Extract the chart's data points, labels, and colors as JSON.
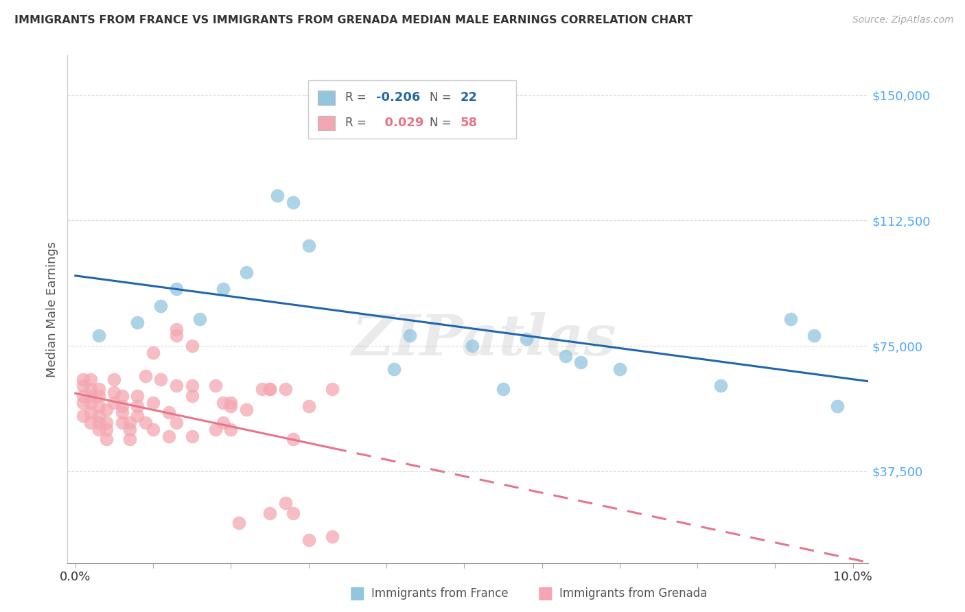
{
  "title": "IMMIGRANTS FROM FRANCE VS IMMIGRANTS FROM GRENADA MEDIAN MALE EARNINGS CORRELATION CHART",
  "source": "Source: ZipAtlas.com",
  "ylabel": "Median Male Earnings",
  "xlim": [
    -0.001,
    0.102
  ],
  "ylim": [
    10000,
    162000
  ],
  "yticks": [
    37500,
    75000,
    112500,
    150000
  ],
  "ytick_labels": [
    "$37,500",
    "$75,000",
    "$112,500",
    "$150,000"
  ],
  "xticks": [
    0.0,
    0.01,
    0.02,
    0.03,
    0.04,
    0.05,
    0.06,
    0.07,
    0.08,
    0.09,
    0.1
  ],
  "xtick_labels": [
    "0.0%",
    "",
    "",
    "",
    "",
    "",
    "",
    "",
    "",
    "",
    "10.0%"
  ],
  "france_color": "#92c5de",
  "grenada_color": "#f4a7b2",
  "france_line_color": "#2166ac",
  "grenada_line_color": "#e8748a",
  "france_R": "-0.206",
  "france_N": "22",
  "grenada_R": "0.029",
  "grenada_N": "58",
  "watermark": "ZIPatlas",
  "france_x": [
    0.003,
    0.008,
    0.011,
    0.013,
    0.016,
    0.019,
    0.022,
    0.026,
    0.028,
    0.03,
    0.041,
    0.043,
    0.051,
    0.055,
    0.058,
    0.063,
    0.065,
    0.07,
    0.083,
    0.092,
    0.095,
    0.098
  ],
  "france_y": [
    78000,
    82000,
    87000,
    92000,
    83000,
    92000,
    97000,
    120000,
    118000,
    105000,
    68000,
    78000,
    75000,
    62000,
    77000,
    72000,
    70000,
    68000,
    63000,
    83000,
    78000,
    57000
  ],
  "grenada_x": [
    0.001,
    0.001,
    0.001,
    0.001,
    0.001,
    0.002,
    0.002,
    0.002,
    0.002,
    0.002,
    0.002,
    0.003,
    0.003,
    0.003,
    0.003,
    0.003,
    0.003,
    0.004,
    0.004,
    0.004,
    0.004,
    0.005,
    0.005,
    0.005,
    0.006,
    0.006,
    0.006,
    0.006,
    0.007,
    0.007,
    0.007,
    0.008,
    0.008,
    0.008,
    0.009,
    0.009,
    0.01,
    0.01,
    0.011,
    0.012,
    0.013,
    0.013,
    0.015,
    0.015,
    0.018,
    0.019,
    0.02,
    0.022,
    0.024,
    0.025,
    0.027,
    0.028,
    0.013,
    0.015,
    0.02,
    0.025,
    0.03,
    0.033
  ],
  "grenada_y": [
    58000,
    60000,
    63000,
    65000,
    54000,
    52000,
    55000,
    58000,
    60000,
    62000,
    65000,
    50000,
    52000,
    54000,
    57000,
    60000,
    62000,
    47000,
    50000,
    52000,
    56000,
    58000,
    61000,
    65000,
    52000,
    55000,
    57000,
    60000,
    47000,
    50000,
    52000,
    54000,
    57000,
    60000,
    52000,
    66000,
    58000,
    73000,
    65000,
    55000,
    78000,
    80000,
    75000,
    63000,
    63000,
    58000,
    58000,
    56000,
    62000,
    62000,
    62000,
    47000,
    63000,
    60000,
    57000,
    62000,
    57000,
    62000
  ],
  "grenada_low_x": [
    0.01,
    0.012,
    0.013,
    0.015,
    0.018,
    0.019,
    0.02,
    0.021,
    0.025,
    0.027,
    0.028,
    0.03,
    0.033
  ],
  "grenada_low_y": [
    50000,
    48000,
    52000,
    48000,
    50000,
    52000,
    50000,
    22000,
    25000,
    28000,
    25000,
    17000,
    18000
  ],
  "background_color": "#ffffff",
  "grid_color": "#d0d0d0"
}
